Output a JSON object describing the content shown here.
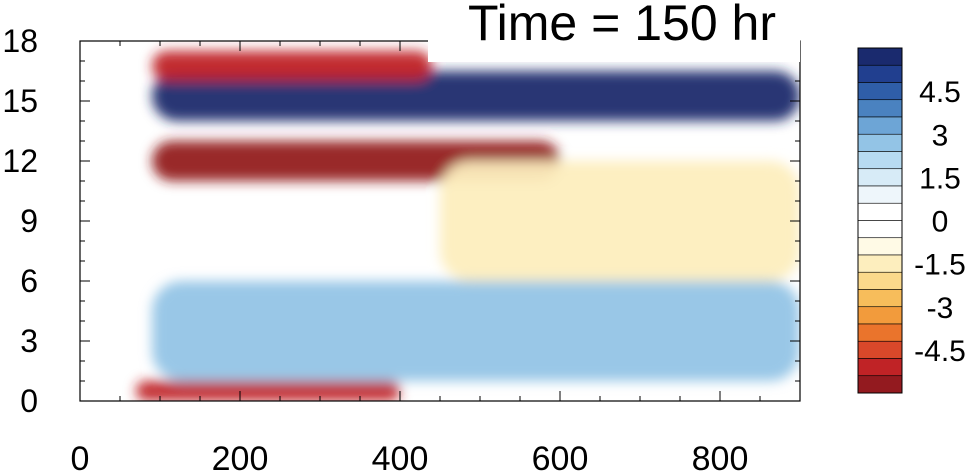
{
  "chart_data": {
    "type": "heatmap",
    "title": "Time = 150 hr",
    "xlabel": "",
    "ylabel": "",
    "xlim": [
      0,
      900
    ],
    "ylim": [
      0,
      18
    ],
    "x_ticks": [
      "0",
      "200",
      "400",
      "600",
      "800"
    ],
    "y_ticks": [
      "0",
      "3",
      "6",
      "9",
      "12",
      "15",
      "18"
    ],
    "grid": false,
    "colorbar": {
      "placement": "right",
      "range": [
        -6,
        6
      ],
      "step": 0.75,
      "labels": [
        "4.5",
        "3",
        "1.5",
        "0",
        "-1.5",
        "-3",
        "-4.5"
      ],
      "colors": [
        "#1a2a6e",
        "#213f8f",
        "#2f5ea8",
        "#4a82c0",
        "#6da5d6",
        "#93c4e6",
        "#b7dbf1",
        "#d7ebf7",
        "#eef6fb",
        "#ffffff",
        "#ffffff",
        "#fffae6",
        "#fdeebe",
        "#fbd98b",
        "#f7bd5b",
        "#f29b3c",
        "#ea742c",
        "#d9482a",
        "#c02326",
        "#931a1f"
      ]
    },
    "features": [
      {
        "name": "upper positive band",
        "x_range": [
          90,
          900
        ],
        "y_range": [
          14,
          16.5
        ],
        "peak": 5.5
      },
      {
        "name": "upper negative band",
        "x_range": [
          90,
          440
        ],
        "y_range": [
          16,
          17.5
        ],
        "peak": -5
      },
      {
        "name": "mid negative band",
        "x_range": [
          90,
          600
        ],
        "y_range": [
          11,
          13
        ],
        "peak": -5.5
      },
      {
        "name": "broad weak negative region",
        "x_range": [
          450,
          900
        ],
        "y_range": [
          6,
          12
        ],
        "peak": -1.5
      },
      {
        "name": "lower positive band",
        "x_range": [
          90,
          900
        ],
        "y_range": [
          1,
          6
        ],
        "peak": 2.5
      },
      {
        "name": "bottom negative strip",
        "x_range": [
          70,
          400
        ],
        "y_range": [
          0,
          1
        ],
        "peak": -5
      }
    ]
  }
}
